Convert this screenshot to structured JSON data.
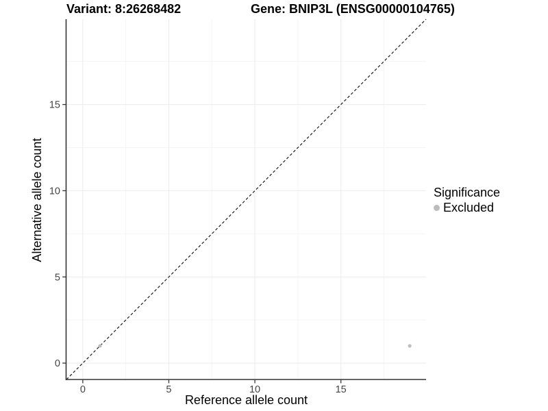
{
  "chart_data": {
    "type": "scatter",
    "title_left": "Variant: 8:26268482",
    "title_right": "Gene: BNIP3L (ENSG00000104765)",
    "xlabel": "Reference allele count",
    "ylabel": "Alternative allele count",
    "xlim": [
      -0.95,
      19.95
    ],
    "ylim": [
      -0.95,
      19.95
    ],
    "x_ticks": [
      0,
      5,
      10,
      15
    ],
    "y_ticks": [
      0,
      5,
      10,
      15
    ],
    "x_minor_ticks": [
      2.5,
      7.5,
      12.5,
      17.5
    ],
    "y_minor_ticks": [
      2.5,
      7.5,
      12.5,
      17.5
    ],
    "grid": true,
    "identity_line": {
      "slope": 1,
      "intercept": 0,
      "style": "dashed",
      "color": "#1a1a1a"
    },
    "series": [
      {
        "name": "Excluded",
        "color": "#bcbcbc",
        "points": [
          {
            "x": 1,
            "y": 1
          },
          {
            "x": 19,
            "y": 1
          }
        ]
      }
    ],
    "legend": {
      "title": "Significance",
      "position": "right",
      "entries": [
        {
          "label": "Excluded",
          "color": "#bcbcbc"
        }
      ]
    }
  },
  "colors": {
    "excluded": "#bcbcbc",
    "axis_line": "#333333",
    "tick_label": "#444444",
    "grid_major": "#ebebeb",
    "grid_minor": "#f4f4f4"
  }
}
